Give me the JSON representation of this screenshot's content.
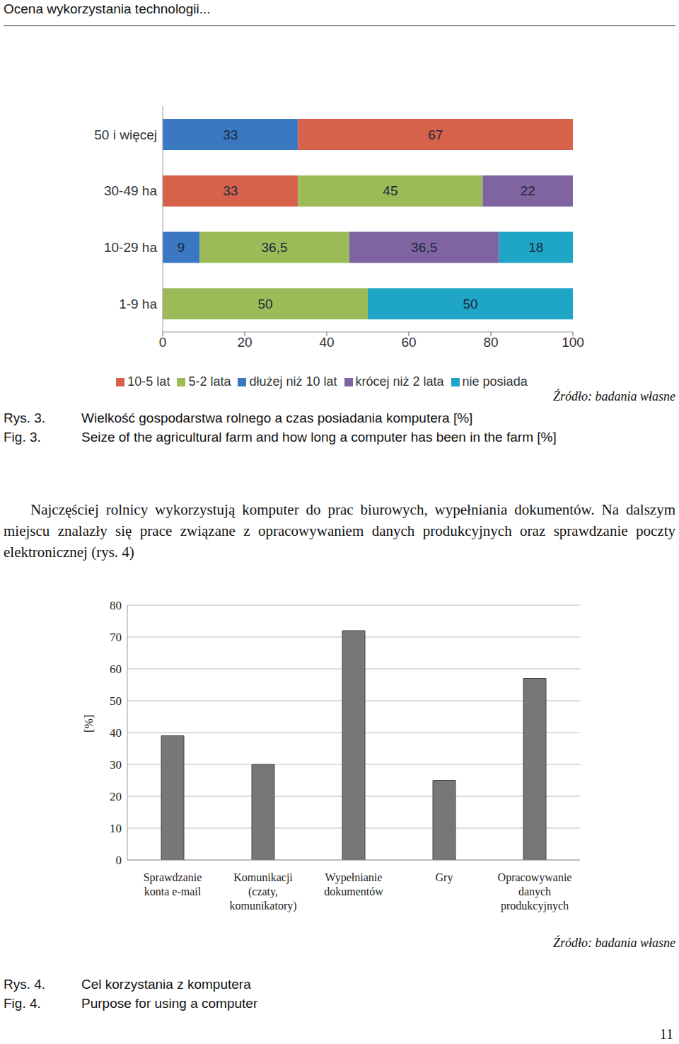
{
  "header": "Ocena wykorzystania technologii...",
  "chart_data": [
    {
      "type": "bar",
      "orientation": "horizontal",
      "stacked": true,
      "data_labels": true,
      "grid": false,
      "legend": "bottom",
      "categories": [
        "50 i więcej",
        "30-49 ha",
        "10-29 ha",
        "1-9 ha"
      ],
      "xlim": [
        0,
        100
      ],
      "xticks": [
        0,
        20,
        40,
        60,
        80,
        100
      ],
      "series": [
        {
          "name": "dłużej niż 10 lat",
          "color": "#3a78c2",
          "values": [
            33,
            null,
            9,
            null
          ]
        },
        {
          "name": "10-5 lat",
          "color": "#d8614c",
          "values": [
            67,
            33,
            null,
            null
          ]
        },
        {
          "name": "5-2 lata",
          "color": "#9bbb59",
          "values": [
            null,
            45,
            36.5,
            50
          ],
          "value_labels": [
            null,
            "45",
            "36,5",
            "50"
          ]
        },
        {
          "name": "krócej niż 2 lata",
          "color": "#8064a2",
          "values": [
            null,
            22,
            36.5,
            null
          ],
          "value_labels": [
            null,
            "22",
            "36,5",
            null
          ]
        },
        {
          "name": "nie posiada",
          "color": "#1fa5c6",
          "values": [
            null,
            null,
            18,
            50
          ]
        }
      ]
    },
    {
      "type": "bar",
      "grid": true,
      "categories": [
        "Sprawdzanie\nkonta e-mail",
        "Komunikacji\n(czaty,\nkomunikatory)",
        "Wypełnianie\ndokumentów",
        "Gry",
        "Opracowywanie\ndanych\nprodukcyjnych"
      ],
      "values": [
        39,
        30,
        72,
        25,
        57
      ],
      "color": "#777777",
      "y_label": "[%]",
      "ylim": [
        0,
        80
      ],
      "yticks": [
        0,
        10,
        20,
        30,
        40,
        50,
        60,
        70,
        80
      ]
    }
  ],
  "figures": [
    {
      "source": "Źródło: badania własne",
      "label_pl": "Rys. 3.",
      "label_en": "Fig. 3.",
      "caption_pl": "Wielkość gospodarstwa rolnego a czas posiadania komputera [%]",
      "caption_en": "Seize of the agricultural farm and how long a computer has been in the farm [%]"
    },
    {
      "source": "Źródło: badania własne",
      "label_pl": "Rys. 4.",
      "label_en": "Fig. 4.",
      "caption_pl": "Cel korzystania z komputera",
      "caption_en": "Purpose for using a computer"
    }
  ],
  "paragraph": "Najczęściej rolnicy wykorzystują komputer do prac biurowych, wypełniania dokumentów. Na dalszym miejscu znalazły się prace związane z opracowywaniem danych produkcyjnych oraz sprawdzanie poczty elektronicznej (rys. 4)",
  "page_number": "11"
}
